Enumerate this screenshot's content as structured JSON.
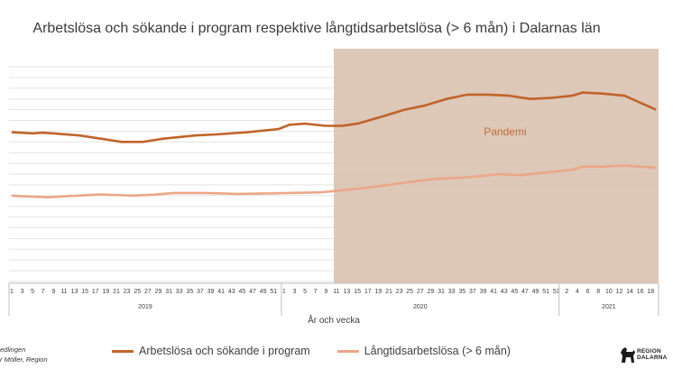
{
  "chart_data": {
    "type": "line",
    "title": "Arbetslösa och sökande i program respektive långtidsarbetslösa (> 6 mån) i Dalarnas län",
    "xlabel": "År och vecka",
    "ylabel": "",
    "grid": true,
    "legend_position": "bottom",
    "x_tick_labels": [
      "1",
      "3",
      "5",
      "7",
      "9",
      "11",
      "13",
      "15",
      "17",
      "19",
      "21",
      "23",
      "25",
      "27",
      "29",
      "31",
      "33",
      "35",
      "37",
      "39",
      "41",
      "43",
      "45",
      "47",
      "49",
      "51",
      "1",
      "3",
      "5",
      "7",
      "9",
      "11",
      "13",
      "15",
      "17",
      "19",
      "21",
      "23",
      "25",
      "27",
      "29",
      "31",
      "33",
      "35",
      "37",
      "39",
      "41",
      "43",
      "45",
      "47",
      "49",
      "51",
      "53",
      "2",
      "4",
      "6",
      "8",
      "10",
      "12",
      "14",
      "16",
      "18"
    ],
    "year_groups": [
      {
        "label": "2019",
        "weeks": 52
      },
      {
        "label": "2020",
        "weeks": 53
      },
      {
        "label": "2021",
        "weeks": 19
      }
    ],
    "x_index_range": [
      1,
      124
    ],
    "ylim": [
      0,
      100
    ],
    "annotation": {
      "label": "Pandemi",
      "x_start": 63,
      "x_end": 124
    },
    "series": [
      {
        "name": "Arbetslösa och sökande i program",
        "color": "#c0642a",
        "points": [
          [
            1,
            69.5
          ],
          [
            5,
            69
          ],
          [
            7,
            69.3
          ],
          [
            10,
            68.8
          ],
          [
            14,
            68
          ],
          [
            18,
            66.5
          ],
          [
            22,
            65
          ],
          [
            26,
            65
          ],
          [
            30,
            66.5
          ],
          [
            36,
            68
          ],
          [
            40,
            68.5
          ],
          [
            46,
            69.5
          ],
          [
            52,
            71
          ],
          [
            54,
            73
          ],
          [
            57,
            73.5
          ],
          [
            61,
            72.5
          ],
          [
            64,
            72.5
          ],
          [
            67,
            73.5
          ],
          [
            72,
            77
          ],
          [
            76,
            80
          ],
          [
            80,
            82
          ],
          [
            84,
            85
          ],
          [
            88,
            87
          ],
          [
            92,
            87
          ],
          [
            96,
            86.5
          ],
          [
            100,
            85
          ],
          [
            104,
            85.5
          ],
          [
            108,
            86.5
          ],
          [
            110,
            88
          ],
          [
            114,
            87.5
          ],
          [
            118,
            86.5
          ],
          [
            124,
            80
          ]
        ]
      },
      {
        "name": "Långtidsarbetslösa (> 6 mån)",
        "color": "#eba788",
        "points": [
          [
            1,
            40
          ],
          [
            4,
            39.6
          ],
          [
            8,
            39.2
          ],
          [
            12,
            39.8
          ],
          [
            18,
            40.5
          ],
          [
            24,
            40
          ],
          [
            28,
            40.4
          ],
          [
            32,
            41.2
          ],
          [
            38,
            41.2
          ],
          [
            44,
            40.8
          ],
          [
            50,
            41
          ],
          [
            54,
            41.2
          ],
          [
            60,
            41.5
          ],
          [
            64,
            42.5
          ],
          [
            70,
            44
          ],
          [
            76,
            46
          ],
          [
            82,
            47.8
          ],
          [
            88,
            48.5
          ],
          [
            94,
            50
          ],
          [
            98,
            49.5
          ],
          [
            104,
            51
          ],
          [
            108,
            52
          ],
          [
            110,
            53.5
          ],
          [
            114,
            53.5
          ],
          [
            118,
            54
          ],
          [
            124,
            53
          ]
        ]
      }
    ]
  },
  "source_lines": [
    "edlingen",
    "r Möller, Region"
  ],
  "logo": {
    "line1": "REGION",
    "line2": "DALARNA"
  }
}
